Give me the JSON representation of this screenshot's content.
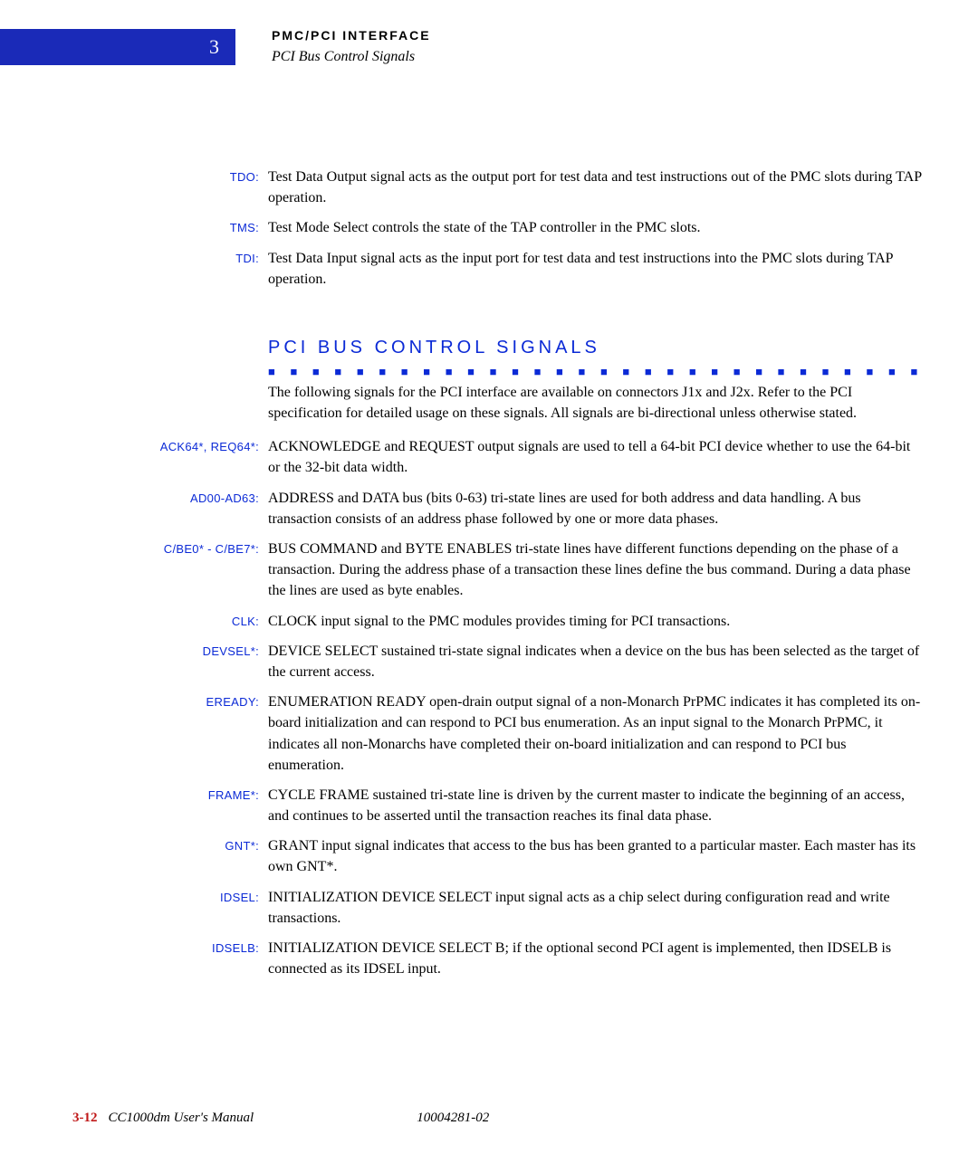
{
  "header": {
    "chapter_number": "3",
    "title_line1": "PMC/PCI INTERFACE",
    "title_line2": "PCI Bus Control Signals"
  },
  "top_defs": [
    {
      "label": "TDO:",
      "text": "Test Data Output signal acts as the output port for test data and test instructions out of the PMC slots during TAP operation."
    },
    {
      "label": "TMS:",
      "text": "Test Mode Select controls the state of the TAP controller in the PMC slots."
    },
    {
      "label": "TDI:",
      "text": "Test Data Input signal acts as the input port for test data and test instructions into the PMC slots during TAP operation."
    }
  ],
  "section": {
    "heading": "PCI BUS CONTROL SIGNALS",
    "intro": "The following signals for the PCI interface are available on connectors J1x and J2x. Refer to the PCI specification for detailed usage on these signals. All signals are bi-directional unless otherwise stated.",
    "defs": [
      {
        "label": "ACK64*, REQ64*:",
        "text": "ACKNOWLEDGE and REQUEST output signals are used to tell a 64-bit PCI device whether to use the 64-bit or the 32-bit data width."
      },
      {
        "label": "AD00-AD63:",
        "text": "ADDRESS and DATA bus (bits 0-63) tri-state lines are used for both address and data handling. A bus transaction consists of an address phase followed by one or more data phases."
      },
      {
        "label": "C/BE0* - C/BE7*:",
        "text": "BUS COMMAND and BYTE ENABLES tri-state lines have different functions depending on the phase of a transaction. During the address phase of a transaction these lines define the bus command. During a data phase the lines are used as byte enables."
      },
      {
        "label": "CLK:",
        "text": "CLOCK input signal to the PMC modules provides timing for PCI transactions."
      },
      {
        "label": "DEVSEL*:",
        "text": "DEVICE SELECT sustained tri-state signal indicates when a device on the bus has been selected as the target of the current access."
      },
      {
        "label": "EREADY:",
        "text": "ENUMERATION READY open-drain output signal of a non-Monarch PrPMC indicates it has completed its on-board initialization and can respond to PCI bus enumeration. As an input signal to the Monarch PrPMC, it indicates all non-Monarchs have completed their on-board initialization and can respond to PCI bus enumeration."
      },
      {
        "label": "FRAME*:",
        "text": "CYCLE FRAME sustained tri-state line is driven by the current master to indicate the beginning of an access, and continues to be asserted until the transaction reaches its final data phase."
      },
      {
        "label": "GNT*:",
        "text": "GRANT input signal indicates that access to the bus has been granted to a particular master. Each master has its own GNT*."
      },
      {
        "label": "IDSEL:",
        "text": "INITIALIZATION DEVICE SELECT input signal acts as a chip select during configuration read and write transactions."
      },
      {
        "label": "IDSELB:",
        "text": "INITIALIZATION DEVICE SELECT B; if the optional second PCI agent is implemented, then IDSELB is connected as its IDSEL input."
      }
    ]
  },
  "footer": {
    "page_number": "3-12",
    "manual_title": "CC1000dm User's Manual",
    "doc_number": "10004281-02"
  },
  "dots": "■ ■ ■ ■ ■ ■ ■ ■ ■ ■ ■ ■ ■ ■ ■ ■ ■ ■ ■ ■ ■ ■ ■ ■ ■ ■ ■ ■ ■ ■ ■ ■ ■ ■ ■ ■ ■ ■ ■ ■ ■ ■ ■ ■ ■ ■ ■ ■ ■ ■ ■ ■ ■ ■ ■"
}
